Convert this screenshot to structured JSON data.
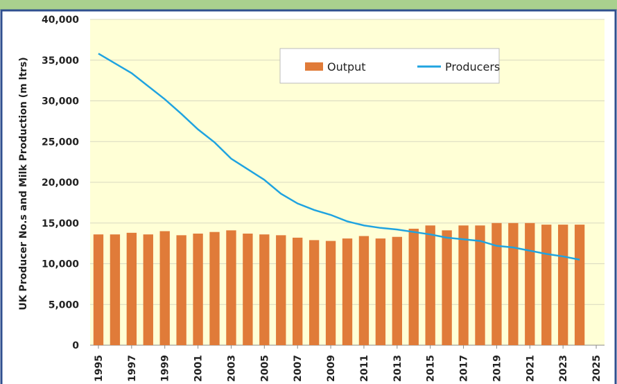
{
  "chart_data": {
    "type": "combo",
    "y_label": "UK Producer No.s and Milk Production (m ltrs)",
    "x": [
      1995,
      1996,
      1997,
      1998,
      1999,
      2000,
      2001,
      2002,
      2003,
      2004,
      2005,
      2006,
      2007,
      2008,
      2009,
      2010,
      2011,
      2012,
      2013,
      2014,
      2015,
      2016,
      2017,
      2018,
      2019,
      2020,
      2021,
      2022,
      2023,
      2024
    ],
    "series": [
      {
        "name": "Output",
        "type": "bar",
        "color": "#e07b39",
        "values": [
          13600,
          13600,
          13800,
          13600,
          14000,
          13500,
          13700,
          13900,
          14100,
          13700,
          13600,
          13500,
          13200,
          12900,
          12800,
          13100,
          13400,
          13100,
          13300,
          14300,
          14700,
          14100,
          14700,
          14700,
          15000,
          15000,
          15000,
          14800,
          14800,
          14800
        ]
      },
      {
        "name": "Producers",
        "type": "line",
        "color": "#1fa3e0",
        "values": [
          35800,
          34600,
          33400,
          31800,
          30200,
          28400,
          26500,
          24900,
          22900,
          21600,
          20300,
          18600,
          17400,
          16600,
          16000,
          15200,
          14700,
          14400,
          14200,
          13900,
          13600,
          13200,
          13000,
          12800,
          12200,
          12000,
          11600,
          11200,
          10900,
          10500
        ]
      }
    ],
    "xlim": [
      1994.5,
      2025.5
    ],
    "xticks": [
      1995,
      1997,
      1999,
      2001,
      2003,
      2005,
      2007,
      2009,
      2011,
      2013,
      2015,
      2017,
      2019,
      2021,
      2023,
      2025
    ],
    "ylim": [
      0,
      40000
    ],
    "yticks": [
      0,
      {
        "value": 5000,
        "label": "5,000"
      },
      {
        "value": 10000,
        "label": "10,000"
      },
      {
        "value": 15000,
        "label": "15,000"
      },
      {
        "value": 20000,
        "label": "20,000"
      },
      {
        "value": 25000,
        "label": "25,000"
      },
      {
        "value": 30000,
        "label": "30,000"
      },
      {
        "value": 35000,
        "label": "35,000"
      },
      {
        "value": 40000,
        "label": "40,000"
      }
    ],
    "grid": true
  }
}
